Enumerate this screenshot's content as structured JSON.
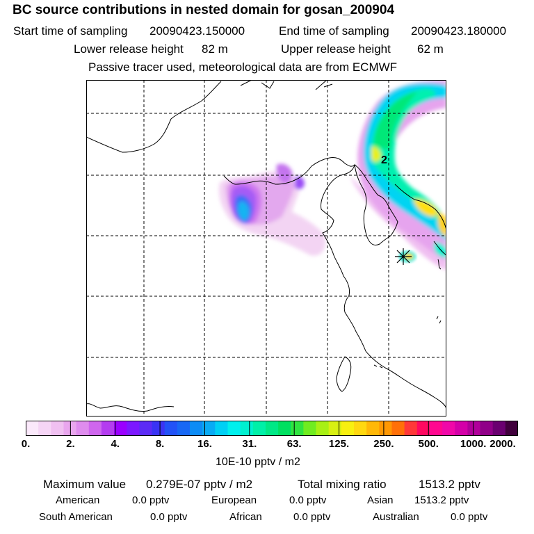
{
  "title": "BC  source contributions in nested domain for gosan_200904",
  "sampling": {
    "start_label": "Start time of sampling",
    "start_value": "20090423.150000",
    "end_label": "End time of sampling",
    "end_value": "20090423.180000"
  },
  "release": {
    "lower_label": "Lower release height",
    "lower_value": "82 m",
    "upper_label": "Upper release height",
    "upper_value": "62 m"
  },
  "note": "Passive tracer used, meteorological data are from ECMWF",
  "map": {
    "marker_label": "2",
    "receptor_marker": "receptor-star",
    "colors": {
      "coast": "#000000",
      "grid": "#000000"
    }
  },
  "colorbar": {
    "ticks": [
      "0.",
      "2.",
      "4.",
      "8.",
      "16.",
      "31.",
      "63.",
      "125.",
      "250.",
      "500.",
      "1000.",
      "2000."
    ],
    "colors": [
      "#fbe9fb",
      "#f6d5f6",
      "#f0c0f1",
      "#e9a6ee",
      "#df8cee",
      "#cf66ee",
      "#b43cf0",
      "#9a00ff",
      "#7c18ff",
      "#5c2cf6",
      "#3a34f4",
      "#2252f7",
      "#1868f5",
      "#0d8cf6",
      "#08abf5",
      "#00d0f5",
      "#00f0ee",
      "#00f0d0",
      "#00f0a8",
      "#00e886",
      "#00e060",
      "#30e440",
      "#70ec20",
      "#a8f014",
      "#d8f012",
      "#f8f010",
      "#ffd810",
      "#ffb808",
      "#ff9804",
      "#ff7008",
      "#ff3838",
      "#ff0860",
      "#ff0890",
      "#f008a8",
      "#d400a8",
      "#b0009a",
      "#900088",
      "#6a0070",
      "#40003c"
    ],
    "unit": "10E-10 pptv / m2"
  },
  "stats": {
    "max_label": "Maximum value",
    "max_value": "0.279E-07 pptv / m2",
    "total_label": "Total mixing ratio",
    "total_value": "1513.2 pptv"
  },
  "regions": [
    {
      "name": "American",
      "value": "0.0 pptv"
    },
    {
      "name": "European",
      "value": "0.0 pptv"
    },
    {
      "name": "Asian",
      "value": "1513.2 pptv"
    },
    {
      "name": "South American",
      "value": "0.0 pptv"
    },
    {
      "name": "African",
      "value": "0.0 pptv"
    },
    {
      "name": "Australian",
      "value": "0.0 pptv"
    }
  ]
}
